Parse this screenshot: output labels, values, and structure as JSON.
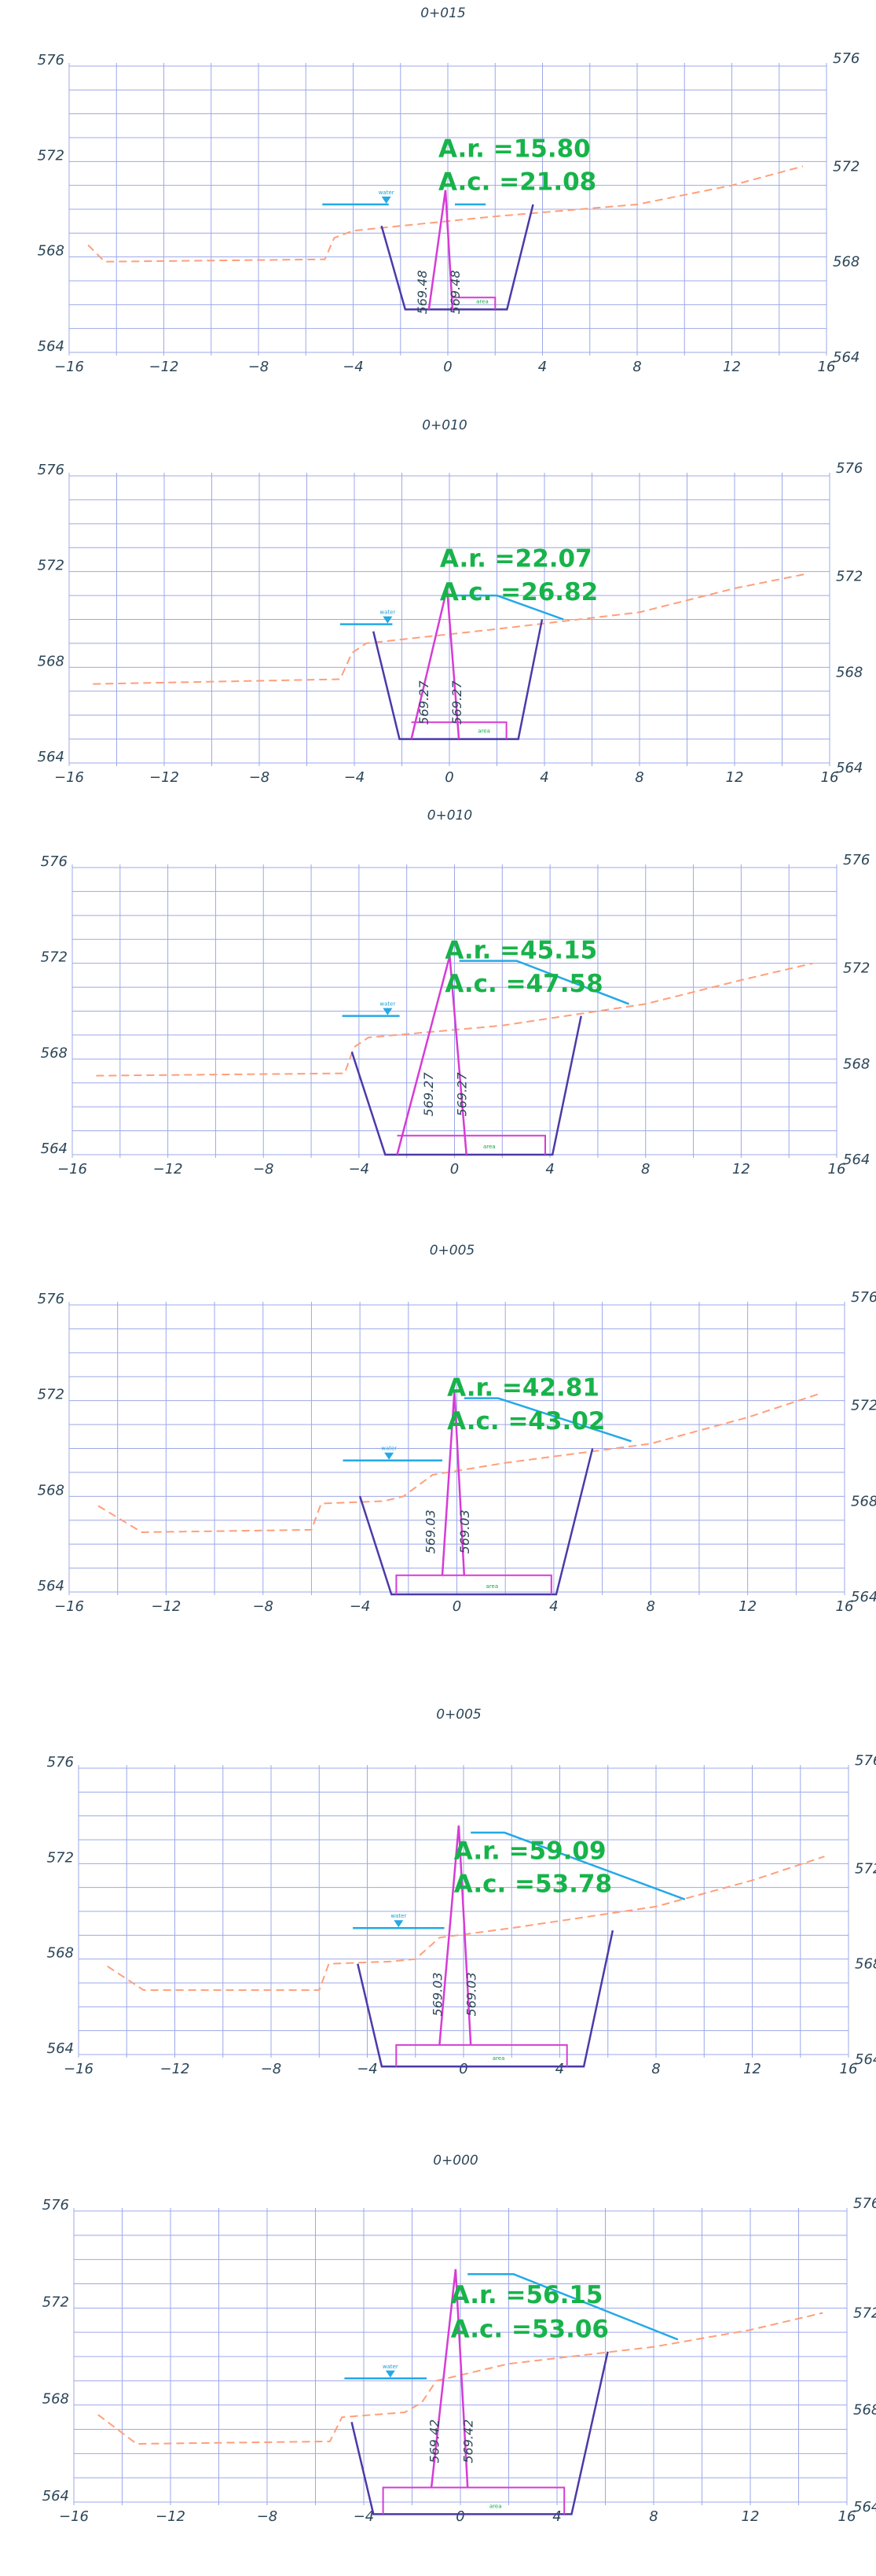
{
  "colors": {
    "grid": "#9ea8e8",
    "axis_text": "#2c4658",
    "terrain": "#ff9f7a",
    "excavation": "#4b3aa8",
    "cofferdam": "#d63cd6",
    "water": "#24a9e6",
    "area_text": "#17b34a"
  },
  "sections": [
    {
      "station": "0+015",
      "ar_label": "A.r. =15.80",
      "ac_label": "A.c. =21.08",
      "x_ticks": [
        "−16",
        "−12",
        "−8",
        "−4",
        "0",
        "4",
        "8",
        "12",
        "16"
      ],
      "y_ticks_left": [
        "576",
        "572",
        "568",
        "564"
      ],
      "y_ticks_right": [
        "576",
        "572",
        "568",
        "564"
      ],
      "vert_labels": [
        "569.48",
        "569.48"
      ],
      "water_tag": "water",
      "green_tag": "area",
      "terrain": [
        [
          -15.2,
          568.5
        ],
        [
          -14.5,
          567.8
        ],
        [
          -5.2,
          567.9
        ],
        [
          -4.8,
          568.8
        ],
        [
          -4.0,
          569.1
        ],
        [
          2.0,
          569.7
        ],
        [
          8.0,
          570.2
        ],
        [
          12.0,
          571.0
        ],
        [
          15.0,
          571.8
        ]
      ],
      "excavation": [
        [
          -2.8,
          569.3
        ],
        [
          -1.8,
          565.8
        ],
        [
          2.5,
          565.8
        ],
        [
          3.6,
          570.2
        ]
      ],
      "cofferdam_outer": [
        [
          -0.8,
          565.8
        ],
        [
          -0.1,
          570.8
        ],
        [
          0.2,
          565.8
        ]
      ],
      "cofferdam_box": [
        [
          0.2,
          566.3
        ],
        [
          2.0,
          566.3
        ],
        [
          2.0,
          565.8
        ]
      ],
      "water_line": [
        [
          -5.3,
          570.2
        ],
        [
          -2.5,
          570.2
        ]
      ],
      "water_marker": [
        -2.6,
        570.2
      ],
      "ac_line": [
        [
          0.3,
          570.2
        ],
        [
          1.6,
          570.2
        ]
      ]
    },
    {
      "station": "0+010",
      "ar_label": "A.r. =22.07",
      "ac_label": "A.c. =26.82",
      "x_ticks": [
        "−16",
        "−12",
        "−8",
        "−4",
        "0",
        "4",
        "8",
        "12",
        "16"
      ],
      "y_ticks_left": [
        "576",
        "572",
        "568",
        "564"
      ],
      "y_ticks_right": [
        "576",
        "572",
        "568",
        "564"
      ],
      "vert_labels": [
        "569.27",
        "569.27"
      ],
      "water_tag": "water",
      "green_tag": "area",
      "terrain": [
        [
          -15.0,
          567.3
        ],
        [
          -4.6,
          567.5
        ],
        [
          -4.1,
          568.6
        ],
        [
          -3.5,
          569.0
        ],
        [
          2.0,
          569.6
        ],
        [
          8.0,
          570.3
        ],
        [
          12.0,
          571.3
        ],
        [
          15.0,
          571.9
        ]
      ],
      "excavation": [
        [
          -3.2,
          569.5
        ],
        [
          -2.1,
          565.0
        ],
        [
          2.9,
          565.0
        ],
        [
          3.9,
          570.0
        ]
      ],
      "cofferdam_outer": [
        [
          -1.6,
          565.0
        ],
        [
          -0.1,
          571.3
        ],
        [
          0.4,
          565.0
        ]
      ],
      "cofferdam_box": [
        [
          -1.6,
          565.7
        ],
        [
          2.4,
          565.7
        ],
        [
          2.4,
          565.0
        ]
      ],
      "water_line": [
        [
          -4.6,
          569.8
        ],
        [
          -2.4,
          569.8
        ]
      ],
      "water_marker": [
        -2.6,
        569.8
      ],
      "ac_line": [
        [
          0.2,
          571.0
        ],
        [
          2.0,
          571.0
        ],
        [
          4.8,
          570.0
        ]
      ]
    },
    {
      "station": "0+010",
      "ar_label": "A.r. =45.15",
      "ac_label": "A.c. =47.58",
      "x_ticks": [
        "−16",
        "−12",
        "−8",
        "−4",
        "0",
        "4",
        "8",
        "12",
        "16"
      ],
      "y_ticks_left": [
        "576",
        "572",
        "568",
        "564"
      ],
      "y_ticks_right": [
        "576",
        "572",
        "568",
        "564"
      ],
      "vert_labels": [
        "569.27",
        "569.27"
      ],
      "water_tag": "water",
      "green_tag": "area",
      "terrain": [
        [
          -15.0,
          567.3
        ],
        [
          -4.6,
          567.4
        ],
        [
          -4.2,
          568.5
        ],
        [
          -3.6,
          568.9
        ],
        [
          2.0,
          569.4
        ],
        [
          8.0,
          570.3
        ],
        [
          12.0,
          571.3
        ],
        [
          15.0,
          572.0
        ]
      ],
      "excavation": [
        [
          -4.3,
          568.3
        ],
        [
          -2.9,
          564.0
        ],
        [
          4.1,
          564.0
        ],
        [
          5.3,
          569.8
        ]
      ],
      "cofferdam_outer": [
        [
          -2.4,
          564.0
        ],
        [
          -0.2,
          572.3
        ],
        [
          0.5,
          564.0
        ]
      ],
      "cofferdam_box": [
        [
          -2.4,
          564.8
        ],
        [
          3.8,
          564.8
        ],
        [
          3.8,
          564.0
        ]
      ],
      "water_line": [
        [
          -4.7,
          569.8
        ],
        [
          -2.3,
          569.8
        ]
      ],
      "water_marker": [
        -2.8,
        569.8
      ],
      "ac_line": [
        [
          0.2,
          572.1
        ],
        [
          2.6,
          572.1
        ],
        [
          7.3,
          570.3
        ]
      ]
    },
    {
      "station": "0+005",
      "ar_label": "A.r. =42.81",
      "ac_label": "A.c. =43.02",
      "x_ticks": [
        "−16",
        "−12",
        "−8",
        "−4",
        "0",
        "4",
        "8",
        "12",
        "16"
      ],
      "y_ticks_left": [
        "576",
        "572",
        "568",
        "564"
      ],
      "y_ticks_right": [
        "576",
        "572",
        "568",
        "564"
      ],
      "vert_labels": [
        "569.03",
        "569.03"
      ],
      "water_tag": "water",
      "green_tag": "area",
      "terrain": [
        [
          -14.8,
          567.6
        ],
        [
          -13.0,
          566.5
        ],
        [
          -6.0,
          566.6
        ],
        [
          -5.6,
          567.7
        ],
        [
          -3.0,
          567.8
        ],
        [
          -2.2,
          568.0
        ],
        [
          -1.0,
          568.9
        ],
        [
          2.0,
          569.4
        ],
        [
          8.0,
          570.2
        ],
        [
          12.0,
          571.3
        ],
        [
          15.0,
          572.3
        ]
      ],
      "excavation": [
        [
          -4.0,
          568.0
        ],
        [
          -2.7,
          563.9
        ],
        [
          4.1,
          563.9
        ],
        [
          5.6,
          570.0
        ]
      ],
      "cofferdam_outer": [
        [
          -0.6,
          564.7
        ],
        [
          -0.1,
          572.4
        ],
        [
          0.3,
          564.7
        ]
      ],
      "cofferdam_box": [
        [
          -2.5,
          563.9
        ],
        [
          -2.5,
          564.7
        ],
        [
          3.9,
          564.7
        ],
        [
          3.9,
          563.9
        ]
      ],
      "water_line": [
        [
          -4.7,
          569.5
        ],
        [
          -0.6,
          569.5
        ]
      ],
      "water_marker": [
        -2.8,
        569.5
      ],
      "ac_line": [
        [
          0.3,
          572.1
        ],
        [
          1.7,
          572.1
        ],
        [
          7.2,
          570.3
        ]
      ]
    },
    {
      "station": "0+005",
      "ar_label": "A.r. =59.09",
      "ac_label": "A.c. =53.78",
      "x_ticks": [
        "−16",
        "−12",
        "−8",
        "−4",
        "0",
        "4",
        "8",
        "12",
        "16"
      ],
      "y_ticks_left": [
        "576",
        "572",
        "568",
        "564"
      ],
      "y_ticks_right": [
        "576",
        "572",
        "568",
        "564"
      ],
      "vert_labels": [
        "569.03",
        "569.03"
      ],
      "water_tag": "water",
      "green_tag": "area",
      "terrain": [
        [
          -14.8,
          567.7
        ],
        [
          -13.3,
          566.7
        ],
        [
          -6.0,
          566.7
        ],
        [
          -5.6,
          567.8
        ],
        [
          -3.0,
          567.9
        ],
        [
          -2.0,
          568.0
        ],
        [
          -1.0,
          568.9
        ],
        [
          2.0,
          569.3
        ],
        [
          8.0,
          570.2
        ],
        [
          12.0,
          571.3
        ],
        [
          15.0,
          572.3
        ]
      ],
      "excavation": [
        [
          -4.4,
          567.8
        ],
        [
          -3.4,
          563.5
        ],
        [
          5.0,
          563.5
        ],
        [
          6.2,
          569.2
        ]
      ],
      "cofferdam_outer": [
        [
          -1.0,
          564.4
        ],
        [
          -0.2,
          573.6
        ],
        [
          0.3,
          564.4
        ]
      ],
      "cofferdam_box": [
        [
          -2.8,
          563.5
        ],
        [
          -2.8,
          564.4
        ],
        [
          4.3,
          564.4
        ],
        [
          4.3,
          563.5
        ]
      ],
      "water_line": [
        [
          -4.6,
          569.3
        ],
        [
          -0.8,
          569.3
        ]
      ],
      "water_marker": [
        -2.7,
        569.3
      ],
      "ac_line": [
        [
          0.3,
          573.3
        ],
        [
          1.7,
          573.3
        ],
        [
          9.2,
          570.5
        ]
      ]
    },
    {
      "station": "0+000",
      "ar_label": "A.r. =56.15",
      "ac_label": "A.c. =53.06",
      "x_ticks": [
        "−16",
        "−12",
        "−8",
        "−4",
        "0",
        "4",
        "8",
        "12",
        "16"
      ],
      "y_ticks_left": [
        "576",
        "572",
        "568",
        "564"
      ],
      "y_ticks_right": [
        "576",
        "572",
        "568",
        "564"
      ],
      "vert_labels": [
        "569.42",
        "569.42"
      ],
      "water_tag": "water",
      "green_tag": "area",
      "terrain": [
        [
          -15.0,
          567.6
        ],
        [
          -13.4,
          566.4
        ],
        [
          -5.4,
          566.5
        ],
        [
          -4.9,
          567.5
        ],
        [
          -2.3,
          567.7
        ],
        [
          -1.6,
          568.1
        ],
        [
          -1.0,
          569.0
        ],
        [
          2.0,
          569.7
        ],
        [
          8.0,
          570.4
        ],
        [
          12.0,
          571.1
        ],
        [
          15.0,
          571.8
        ]
      ],
      "excavation": [
        [
          -4.5,
          567.3
        ],
        [
          -3.6,
          563.5
        ],
        [
          4.6,
          563.5
        ],
        [
          6.1,
          570.2
        ]
      ],
      "cofferdam_outer": [
        [
          -1.2,
          564.6
        ],
        [
          -0.2,
          573.6
        ],
        [
          0.3,
          564.6
        ]
      ],
      "cofferdam_box": [
        [
          -3.2,
          563.5
        ],
        [
          -3.2,
          564.6
        ],
        [
          4.3,
          564.6
        ],
        [
          4.3,
          563.5
        ]
      ],
      "water_line": [
        [
          -4.8,
          569.1
        ],
        [
          -1.4,
          569.1
        ]
      ],
      "water_marker": [
        -2.9,
        569.1
      ],
      "ac_line": [
        [
          0.3,
          573.4
        ],
        [
          2.2,
          573.4
        ],
        [
          9.0,
          570.7
        ]
      ]
    }
  ]
}
